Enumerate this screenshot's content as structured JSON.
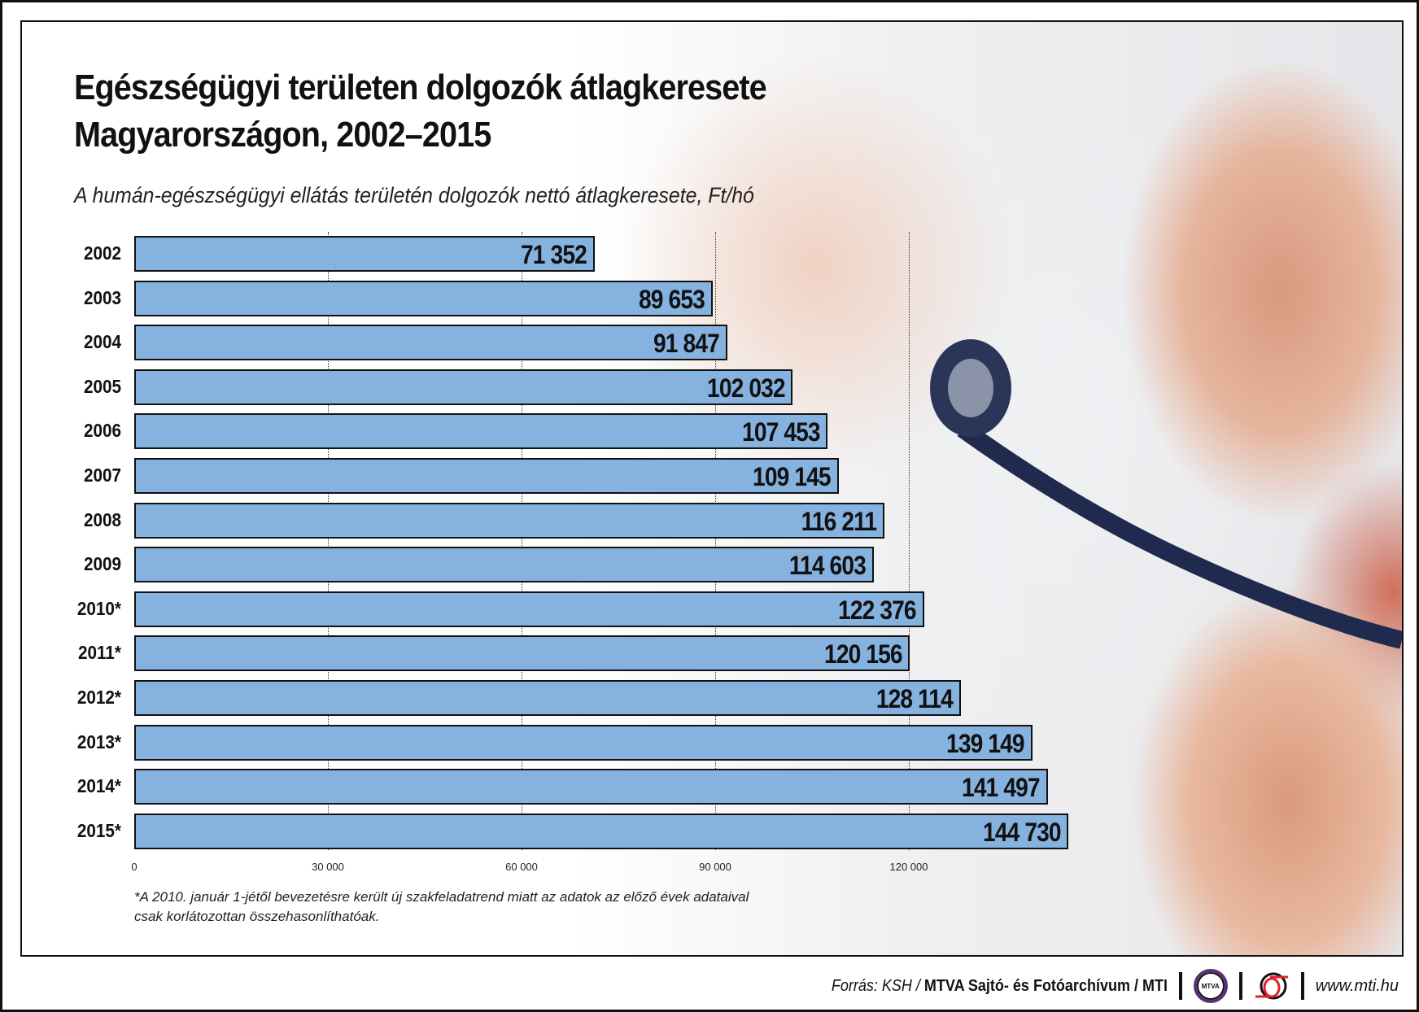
{
  "chart_data": {
    "type": "bar",
    "orientation": "horizontal",
    "title": "Egészségügyi területen dolgozók átlagkeresete Magyarországon, 2002–2015",
    "title_lines": [
      "Egészségügyi területen dolgozók átlagkeresete",
      "Magyarországon, 2002–2015"
    ],
    "subtitle": "A humán-egészségügyi ellátás területén dolgozók nettó átlagkeresete, Ft/hó",
    "categories": [
      "2002",
      "2003",
      "2004",
      "2005",
      "2006",
      "2007",
      "2008",
      "2009",
      "2010*",
      "2011*",
      "2012*",
      "2013*",
      "2014*",
      "2015*"
    ],
    "values": [
      71352,
      89653,
      91847,
      102032,
      107453,
      109145,
      116211,
      114603,
      122376,
      120156,
      128114,
      139149,
      141497,
      144730
    ],
    "value_labels": [
      "71 352",
      "89 653",
      "91 847",
      "102 032",
      "107 453",
      "109 145",
      "116 211",
      "114 603",
      "122 376",
      "120 156",
      "128 114",
      "139 149",
      "141 497",
      "144 730"
    ],
    "xlim": [
      0,
      150000
    ],
    "xticks": [
      "0",
      "30 000",
      "60 000",
      "90 000",
      "120 000"
    ],
    "grid": true,
    "bar_color": "#86b2df",
    "footnote": [
      "*A 2010. január 1-jétől bevezetésre került új szakfeladatrend miatt az adatok az előző évek adataival",
      "csak korlátozottan összehasonlíthatóak."
    ]
  },
  "footer": {
    "source_prefix": "Forrás: KSH / ",
    "source_bold": "MTVA Sajtó- és Fotóarchívum / MTI",
    "logo1": "MTVA",
    "url": "www.mti.hu"
  }
}
